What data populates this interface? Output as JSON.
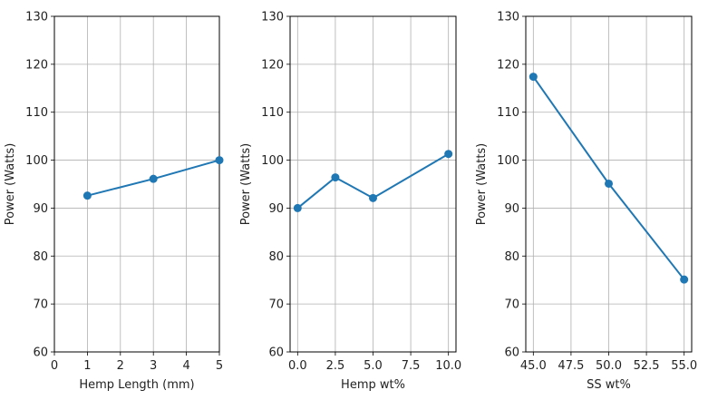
{
  "chart_data": [
    {
      "type": "line",
      "title": "",
      "xlabel": "Hemp Length (mm)",
      "ylabel": "Power (Watts)",
      "xlim": [
        0,
        5
      ],
      "ylim": [
        60,
        130
      ],
      "xticks": [
        "0",
        "1",
        "2",
        "3",
        "4",
        "5"
      ],
      "yticks": [
        "60",
        "70",
        "80",
        "90",
        "100",
        "110",
        "120",
        "130"
      ],
      "grid": true,
      "series": [
        {
          "x": [
            1,
            3,
            5
          ],
          "y": [
            92.6,
            96.1,
            100.0
          ]
        }
      ]
    },
    {
      "type": "line",
      "title": "",
      "xlabel": "Hemp wt%",
      "ylabel": "Power (Watts)",
      "xlim": [
        -0.5,
        10.5
      ],
      "ylim": [
        60,
        130
      ],
      "xticks": [
        "0.0",
        "2.5",
        "5.0",
        "7.5",
        "10.0"
      ],
      "yticks": [
        "60",
        "70",
        "80",
        "90",
        "100",
        "110",
        "120",
        "130"
      ],
      "grid": true,
      "series": [
        {
          "x": [
            0,
            2.5,
            5,
            10
          ],
          "y": [
            90.0,
            96.4,
            92.1,
            101.3
          ]
        }
      ]
    },
    {
      "type": "line",
      "title": "",
      "xlabel": "SS wt%",
      "ylabel": "Power (Watts)",
      "xlim": [
        44.5,
        55.5
      ],
      "ylim": [
        60,
        130
      ],
      "xticks": [
        "45.0",
        "47.5",
        "50.0",
        "52.5",
        "55.0"
      ],
      "yticks": [
        "60",
        "70",
        "80",
        "90",
        "100",
        "110",
        "120",
        "130"
      ],
      "grid": true,
      "series": [
        {
          "x": [
            45,
            50,
            55
          ],
          "y": [
            117.4,
            95.1,
            75.1
          ]
        }
      ]
    }
  ],
  "colors": {
    "line": "#1f77b4",
    "grid": "#b0b0b0",
    "axis": "#000000"
  }
}
